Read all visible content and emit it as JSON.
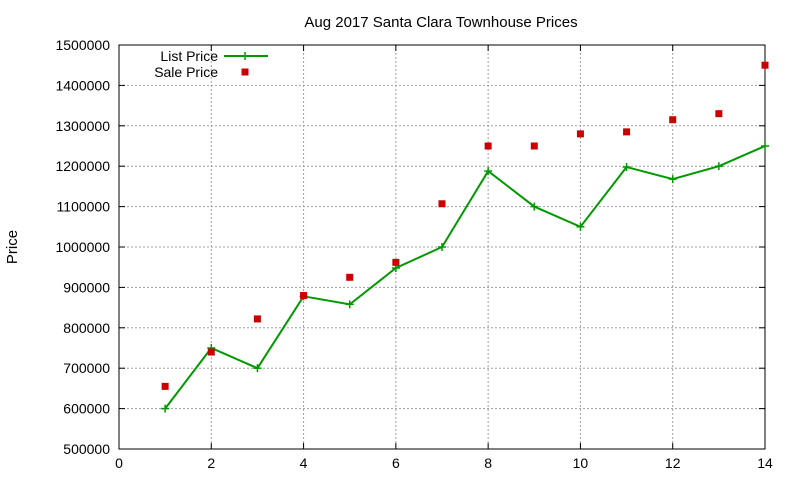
{
  "chart_data": {
    "type": "line",
    "title": "Aug 2017 Santa Clara Townhouse Prices",
    "xlabel": "",
    "ylabel": "Price",
    "xlim": [
      0,
      14
    ],
    "ylim": [
      500000,
      1500000
    ],
    "x_ticks": [
      0,
      2,
      4,
      6,
      8,
      10,
      12,
      14
    ],
    "y_ticks": [
      500000,
      600000,
      700000,
      800000,
      900000,
      1000000,
      1100000,
      1200000,
      1300000,
      1400000,
      1500000
    ],
    "x_tick_labels": [
      "0",
      "2",
      "4",
      "6",
      "8",
      "10",
      "12",
      "14"
    ],
    "y_tick_labels": [
      "500000",
      "600000",
      "700000",
      "800000",
      "900000",
      "1000000",
      "1100000",
      "1200000",
      "1300000",
      "1400000",
      "1500000"
    ],
    "grid": true,
    "legend_position": "top-left",
    "series": [
      {
        "name": "List Price",
        "style": "line-with-plus-markers",
        "color": "#009900",
        "x": [
          1,
          2,
          3,
          4,
          5,
          6,
          7,
          8,
          9,
          10,
          11,
          12,
          13,
          14
        ],
        "y": [
          600000,
          750000,
          700000,
          878000,
          858000,
          948000,
          1000000,
          1188000,
          1100000,
          1050000,
          1198000,
          1168000,
          1200000,
          1250000
        ]
      },
      {
        "name": "Sale Price",
        "style": "square-points",
        "color": "#cc0000",
        "x": [
          1,
          2,
          3,
          4,
          5,
          6,
          7,
          8,
          9,
          10,
          11,
          12,
          13,
          14
        ],
        "y": [
          655000,
          740000,
          822000,
          880000,
          925000,
          962000,
          1107000,
          1250000,
          1250000,
          1280000,
          1285000,
          1315000,
          1330000,
          1450000
        ]
      }
    ]
  }
}
